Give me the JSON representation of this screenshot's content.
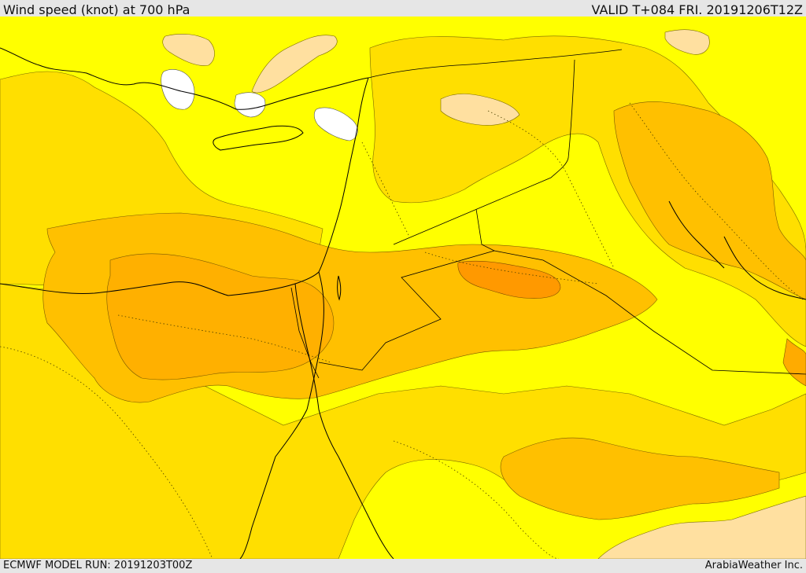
{
  "header": {
    "title": "Wind speed (knot) at 700 hPa",
    "valid": "VALID T+084 FRI. 20191206T12Z"
  },
  "footer": {
    "model_run": "ECMWF MODEL RUN: 20191203T00Z",
    "credit": "ArabiaWeather Inc."
  },
  "map": {
    "colors": {
      "calm": "#ffffff",
      "low": "#ffe0a0",
      "light": "#ffff00",
      "moderate": "#ffdf00",
      "strong": "#ffc000",
      "stronger": "#ffab00",
      "max": "#ff9900",
      "coast": "#000000",
      "border": "#000000"
    }
  }
}
